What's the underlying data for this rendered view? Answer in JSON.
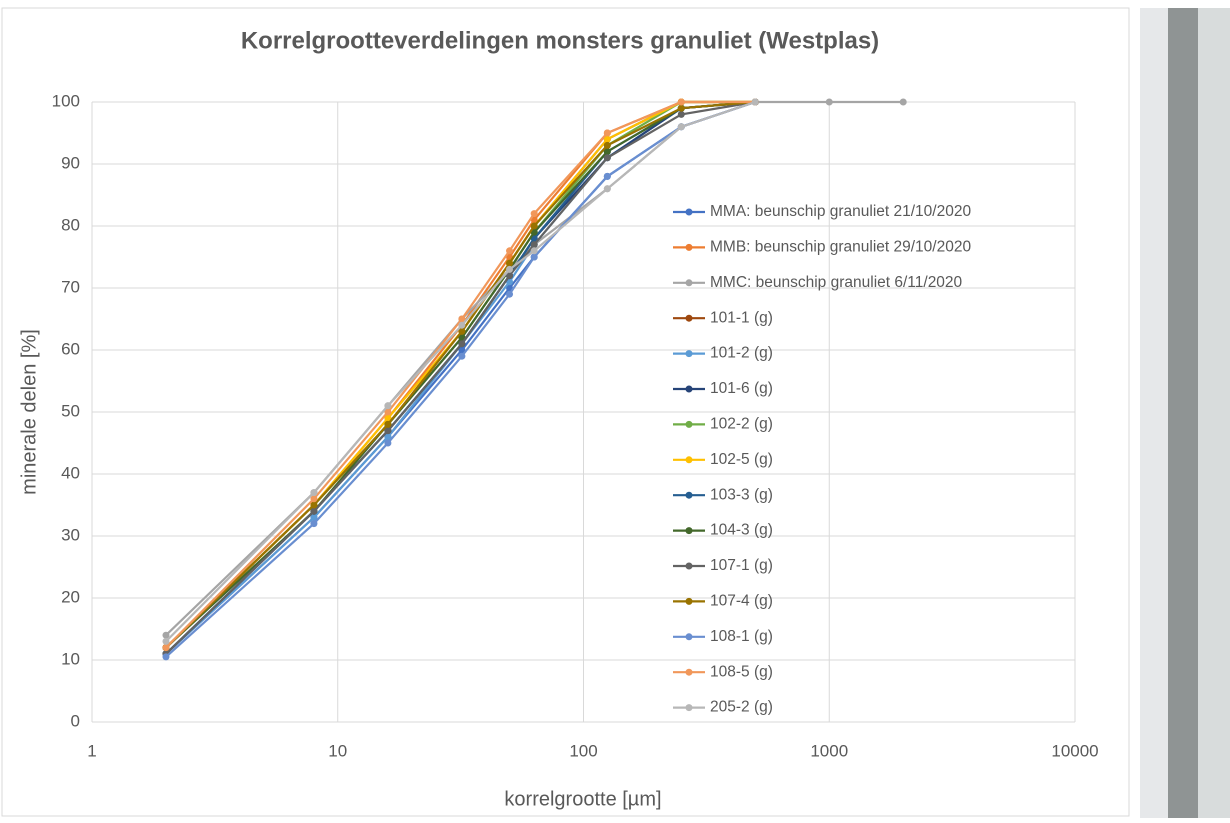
{
  "chart_data": {
    "type": "line",
    "title": "Korrelgrootteverdelingen monsters granuliet (Westplas)",
    "x_label": "korrelgrootte [µm]",
    "y_label": "minerale delen [%]",
    "xscale": "log",
    "grid": true,
    "x": [
      2,
      8,
      16,
      32,
      50,
      63,
      125,
      250,
      500,
      1000,
      2000
    ],
    "xlim": [
      1,
      10000
    ],
    "xticks": [
      1,
      10,
      100,
      1000,
      10000
    ],
    "ylim": [
      0,
      100
    ],
    "yticks": [
      0,
      10,
      20,
      30,
      40,
      50,
      60,
      70,
      80,
      90,
      100
    ],
    "series": [
      {
        "name": "MMA: beunschip granuliet 21/10/2020",
        "color": "#4472c4",
        "values": [
          11,
          33,
          46,
          60,
          70,
          75,
          88,
          96,
          100,
          null,
          null
        ]
      },
      {
        "name": "MMB: beunschip granuliet 29/10/2020",
        "color": "#ed7d31",
        "values": [
          12,
          35,
          49,
          64,
          75,
          81,
          95,
          100,
          100,
          null,
          null
        ]
      },
      {
        "name": "MMC: beunschip granuliet 6/11/2020",
        "color": "#a5a5a5",
        "values": [
          14,
          37,
          51,
          65,
          73,
          77,
          86,
          96,
          100,
          100,
          100
        ]
      },
      {
        "name": "101-1 (g)",
        "color": "#9e480e",
        "values": [
          12,
          35,
          48,
          63,
          74,
          80,
          94,
          100,
          100,
          null,
          null
        ]
      },
      {
        "name": "101-2 (g)",
        "color": "#5b9bd5",
        "values": [
          11,
          33,
          46,
          61,
          71,
          77,
          91,
          99,
          100,
          null,
          null
        ]
      },
      {
        "name": "101-6 (g)",
        "color": "#264478",
        "values": [
          11,
          34,
          47,
          61,
          72,
          78,
          91,
          99,
          100,
          null,
          null
        ]
      },
      {
        "name": "102-2 (g)",
        "color": "#70ad47",
        "values": [
          12,
          35,
          48,
          62,
          73,
          79,
          93,
          100,
          100,
          null,
          null
        ]
      },
      {
        "name": "102-5 (g)",
        "color": "#ffc000",
        "values": [
          12,
          35,
          49,
          63,
          74,
          80,
          94,
          100,
          100,
          null,
          null
        ]
      },
      {
        "name": "103-3 (g)",
        "color": "#255e91",
        "values": [
          11,
          34,
          47,
          61,
          72,
          78,
          92,
          99,
          100,
          null,
          null
        ]
      },
      {
        "name": "104-3 (g)",
        "color": "#43682b",
        "values": [
          12,
          34,
          48,
          62,
          73,
          79,
          92,
          99,
          100,
          null,
          null
        ]
      },
      {
        "name": "107-1 (g)",
        "color": "#636363",
        "values": [
          11,
          34,
          47,
          61,
          72,
          77,
          91,
          98,
          100,
          null,
          null
        ]
      },
      {
        "name": "107-4 (g)",
        "color": "#997300",
        "values": [
          12,
          35,
          48,
          63,
          74,
          80,
          93,
          99,
          100,
          null,
          null
        ]
      },
      {
        "name": "108-1 (g)",
        "color": "#698ed0",
        "values": [
          10.5,
          32,
          45,
          59,
          69,
          75,
          88,
          96,
          100,
          null,
          null
        ]
      },
      {
        "name": "108-5 (g)",
        "color": "#f1975a",
        "values": [
          12,
          36,
          50,
          65,
          76,
          82,
          95,
          100,
          100,
          null,
          null
        ]
      },
      {
        "name": "205-2 (g)",
        "color": "#b7b7b7",
        "values": [
          13,
          37,
          51,
          64,
          73,
          76,
          86,
          96,
          100,
          null,
          null
        ]
      }
    ]
  }
}
